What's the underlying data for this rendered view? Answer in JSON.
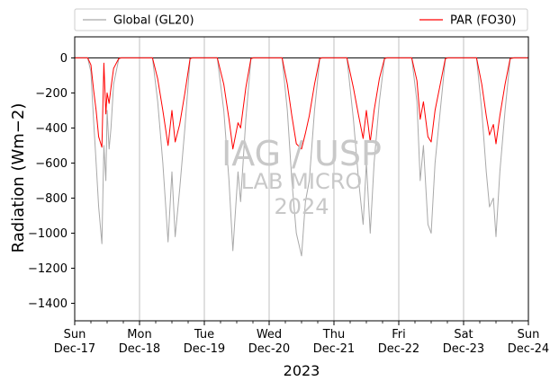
{
  "chart_data": {
    "type": "line",
    "xlabel": "2023",
    "ylabel": "Radiation (Wm−2)",
    "ylim": [
      -1500,
      120
    ],
    "yticks": [
      0,
      -200,
      -400,
      -600,
      -800,
      -1000,
      -1200,
      -1400
    ],
    "xlim": [
      0,
      7
    ],
    "xticks": [
      {
        "x": 0,
        "day": "Sun",
        "date": "Dec-17"
      },
      {
        "x": 1,
        "day": "Mon",
        "date": "Dec-18"
      },
      {
        "x": 2,
        "day": "Tue",
        "date": "Dec-19"
      },
      {
        "x": 3,
        "day": "Wed",
        "date": "Dec-20"
      },
      {
        "x": 4,
        "day": "Thu",
        "date": "Dec-21"
      },
      {
        "x": 5,
        "day": "Fri",
        "date": "Dec-22"
      },
      {
        "x": 6,
        "day": "Sat",
        "date": "Dec-23"
      },
      {
        "x": 7,
        "day": "Sun",
        "date": "Dec-24"
      }
    ],
    "grid": "vertical",
    "zero_line": true,
    "legend": {
      "placement": "top, outside plot"
    },
    "watermark": [
      "IAG / USP",
      "LAB MICRO",
      "2024"
    ],
    "x_unit": "days since Dec-17 00:00",
    "series": [
      {
        "name": "Global (GL20)",
        "color": "#a9a9a9",
        "points": [
          [
            0.0,
            0
          ],
          [
            0.2,
            0
          ],
          [
            0.25,
            -80
          ],
          [
            0.29,
            -350
          ],
          [
            0.33,
            -600
          ],
          [
            0.37,
            -850
          ],
          [
            0.42,
            -1060
          ],
          [
            0.45,
            -500
          ],
          [
            0.48,
            -700
          ],
          [
            0.5,
            -300
          ],
          [
            0.53,
            -520
          ],
          [
            0.56,
            -400
          ],
          [
            0.6,
            -150
          ],
          [
            0.68,
            -5
          ],
          [
            0.72,
            0
          ],
          [
            1.0,
            0
          ],
          [
            1.2,
            0
          ],
          [
            1.28,
            -250
          ],
          [
            1.36,
            -600
          ],
          [
            1.44,
            -1050
          ],
          [
            1.5,
            -650
          ],
          [
            1.55,
            -1020
          ],
          [
            1.62,
            -750
          ],
          [
            1.7,
            -400
          ],
          [
            1.78,
            -5
          ],
          [
            1.82,
            0
          ],
          [
            2.0,
            0
          ],
          [
            2.2,
            0
          ],
          [
            2.3,
            -300
          ],
          [
            2.38,
            -700
          ],
          [
            2.44,
            -1100
          ],
          [
            2.52,
            -650
          ],
          [
            2.56,
            -820
          ],
          [
            2.64,
            -350
          ],
          [
            2.72,
            -5
          ],
          [
            2.76,
            0
          ],
          [
            3.0,
            0
          ],
          [
            3.2,
            0
          ],
          [
            3.28,
            -300
          ],
          [
            3.35,
            -700
          ],
          [
            3.42,
            -1000
          ],
          [
            3.5,
            -1130
          ],
          [
            3.56,
            -820
          ],
          [
            3.62,
            -700
          ],
          [
            3.7,
            -300
          ],
          [
            3.78,
            -5
          ],
          [
            3.82,
            0
          ],
          [
            4.0,
            0
          ],
          [
            4.2,
            0
          ],
          [
            4.3,
            -350
          ],
          [
            4.38,
            -700
          ],
          [
            4.45,
            -950
          ],
          [
            4.5,
            -600
          ],
          [
            4.56,
            -1000
          ],
          [
            4.62,
            -600
          ],
          [
            4.7,
            -250
          ],
          [
            4.78,
            -5
          ],
          [
            4.82,
            0
          ],
          [
            5.0,
            0
          ],
          [
            5.2,
            0
          ],
          [
            5.28,
            -250
          ],
          [
            5.33,
            -700
          ],
          [
            5.38,
            -500
          ],
          [
            5.45,
            -950
          ],
          [
            5.5,
            -1000
          ],
          [
            5.56,
            -600
          ],
          [
            5.64,
            -300
          ],
          [
            5.72,
            -5
          ],
          [
            5.76,
            0
          ],
          [
            6.0,
            0
          ],
          [
            6.2,
            0
          ],
          [
            6.28,
            -300
          ],
          [
            6.35,
            -650
          ],
          [
            6.4,
            -850
          ],
          [
            6.46,
            -800
          ],
          [
            6.5,
            -1020
          ],
          [
            6.56,
            -650
          ],
          [
            6.64,
            -300
          ],
          [
            6.72,
            -5
          ],
          [
            6.78,
            0
          ],
          [
            7.0,
            0
          ]
        ]
      },
      {
        "name": "PAR (FO30)",
        "color": "#ff0000",
        "points": [
          [
            0.0,
            0
          ],
          [
            0.2,
            0
          ],
          [
            0.25,
            -40
          ],
          [
            0.29,
            -180
          ],
          [
            0.33,
            -300
          ],
          [
            0.37,
            -450
          ],
          [
            0.42,
            -510
          ],
          [
            0.45,
            -30
          ],
          [
            0.48,
            -320
          ],
          [
            0.5,
            -200
          ],
          [
            0.53,
            -260
          ],
          [
            0.56,
            -170
          ],
          [
            0.6,
            -60
          ],
          [
            0.68,
            -3
          ],
          [
            0.72,
            0
          ],
          [
            1.0,
            0
          ],
          [
            1.2,
            0
          ],
          [
            1.28,
            -120
          ],
          [
            1.36,
            -300
          ],
          [
            1.44,
            -500
          ],
          [
            1.5,
            -300
          ],
          [
            1.55,
            -480
          ],
          [
            1.62,
            -380
          ],
          [
            1.7,
            -200
          ],
          [
            1.78,
            -3
          ],
          [
            1.82,
            0
          ],
          [
            2.0,
            0
          ],
          [
            2.2,
            0
          ],
          [
            2.3,
            -150
          ],
          [
            2.38,
            -350
          ],
          [
            2.44,
            -520
          ],
          [
            2.52,
            -370
          ],
          [
            2.56,
            -400
          ],
          [
            2.64,
            -170
          ],
          [
            2.72,
            -3
          ],
          [
            2.76,
            0
          ],
          [
            3.0,
            0
          ],
          [
            3.2,
            0
          ],
          [
            3.28,
            -150
          ],
          [
            3.35,
            -330
          ],
          [
            3.42,
            -490
          ],
          [
            3.5,
            -520
          ],
          [
            3.56,
            -430
          ],
          [
            3.62,
            -330
          ],
          [
            3.7,
            -150
          ],
          [
            3.78,
            -3
          ],
          [
            3.82,
            0
          ],
          [
            4.0,
            0
          ],
          [
            4.2,
            0
          ],
          [
            4.3,
            -170
          ],
          [
            4.38,
            -330
          ],
          [
            4.45,
            -460
          ],
          [
            4.5,
            -300
          ],
          [
            4.56,
            -480
          ],
          [
            4.62,
            -300
          ],
          [
            4.7,
            -120
          ],
          [
            4.78,
            -3
          ],
          [
            4.82,
            0
          ],
          [
            5.0,
            0
          ],
          [
            5.2,
            0
          ],
          [
            5.28,
            -130
          ],
          [
            5.33,
            -350
          ],
          [
            5.38,
            -250
          ],
          [
            5.45,
            -450
          ],
          [
            5.5,
            -480
          ],
          [
            5.56,
            -300
          ],
          [
            5.64,
            -150
          ],
          [
            5.72,
            -3
          ],
          [
            5.76,
            0
          ],
          [
            6.0,
            0
          ],
          [
            6.2,
            0
          ],
          [
            6.28,
            -150
          ],
          [
            6.35,
            -330
          ],
          [
            6.4,
            -440
          ],
          [
            6.46,
            -380
          ],
          [
            6.5,
            -490
          ],
          [
            6.56,
            -330
          ],
          [
            6.64,
            -150
          ],
          [
            6.72,
            -3
          ],
          [
            6.78,
            0
          ],
          [
            7.0,
            0
          ]
        ]
      }
    ]
  }
}
